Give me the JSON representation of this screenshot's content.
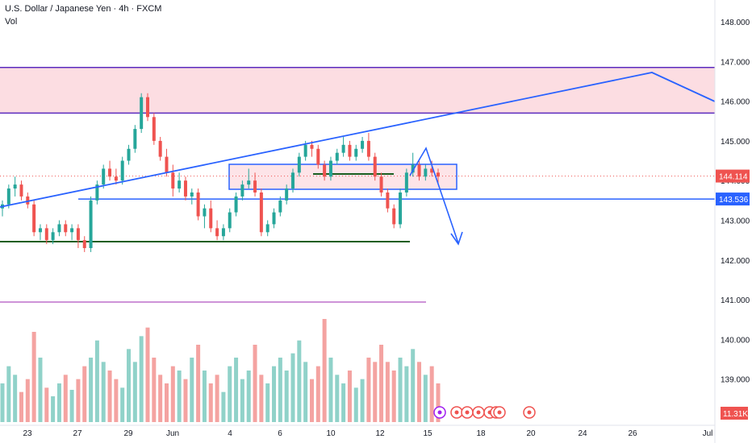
{
  "header": {
    "symbol_line": "U.S. Dollar / Japanese Yen · 4h · FXCM",
    "vol_label": "Vol"
  },
  "colors": {
    "up": "#26a69a",
    "down": "#ef5350",
    "vol_up": "#90d2c9",
    "vol_down": "#f4a3a1",
    "trend": "#2962ff",
    "zone_fill": "#fcdde2",
    "zone_border": "#5b2bbf",
    "support_green": "#1b5e20",
    "purple_line": "#ce93d8",
    "last_price_bg": "#ef5350",
    "level_bg": "#2962ff",
    "vol_badge_bg": "#ef5350"
  },
  "chart_data": {
    "type": "candlestick",
    "title": "U.S. Dollar / Japanese Yen · 4h · FXCM",
    "ylim": [
      138.0,
      148.3
    ],
    "y_ticks": [
      "148.000",
      "147.000",
      "146.000",
      "145.000",
      "144.000",
      "143.000",
      "142.000",
      "141.000",
      "140.000",
      "139.000"
    ],
    "x_ticks": [
      "23",
      "27",
      "29",
      "Jun",
      "4",
      "6",
      "10",
      "12",
      "15",
      "18",
      "20",
      "24",
      "26",
      "Jul"
    ],
    "price_labels": {
      "last_price": "144.114",
      "level": "143.536",
      "volume": "11.31K"
    },
    "ohlc_approx": [
      [
        143.3,
        143.5,
        143.1,
        143.4
      ],
      [
        143.4,
        143.9,
        143.3,
        143.8
      ],
      [
        143.8,
        144.1,
        143.6,
        143.9
      ],
      [
        143.9,
        144.0,
        143.5,
        143.6
      ],
      [
        143.6,
        143.7,
        143.3,
        143.4
      ],
      [
        143.4,
        143.5,
        142.6,
        142.7
      ],
      [
        142.7,
        142.9,
        142.5,
        142.8
      ],
      [
        142.8,
        142.9,
        142.4,
        142.5
      ],
      [
        142.5,
        142.8,
        142.4,
        142.7
      ],
      [
        142.7,
        143.0,
        142.6,
        142.9
      ],
      [
        142.9,
        143.0,
        142.6,
        142.7
      ],
      [
        142.7,
        142.9,
        142.5,
        142.8
      ],
      [
        142.8,
        142.9,
        142.3,
        142.5
      ],
      [
        142.5,
        142.6,
        142.2,
        142.3
      ],
      [
        142.3,
        143.6,
        142.2,
        143.5
      ],
      [
        143.5,
        144.0,
        143.4,
        143.9
      ],
      [
        143.9,
        144.4,
        143.8,
        144.3
      ],
      [
        144.3,
        144.5,
        144.0,
        144.1
      ],
      [
        144.1,
        144.3,
        143.9,
        144.0
      ],
      [
        144.0,
        144.6,
        143.9,
        144.5
      ],
      [
        144.5,
        144.9,
        144.4,
        144.8
      ],
      [
        144.8,
        145.4,
        144.7,
        145.3
      ],
      [
        145.3,
        146.2,
        145.2,
        146.1
      ],
      [
        146.1,
        146.2,
        145.5,
        145.6
      ],
      [
        145.6,
        145.7,
        144.9,
        145.0
      ],
      [
        145.0,
        145.1,
        144.5,
        144.6
      ],
      [
        144.6,
        144.8,
        144.1,
        144.2
      ],
      [
        144.2,
        144.4,
        143.6,
        143.8
      ],
      [
        143.8,
        144.2,
        143.7,
        144.0
      ],
      [
        144.0,
        144.1,
        143.5,
        143.6
      ],
      [
        143.6,
        143.8,
        143.4,
        143.7
      ],
      [
        143.7,
        143.8,
        143.0,
        143.1
      ],
      [
        143.1,
        143.4,
        142.8,
        143.3
      ],
      [
        143.3,
        143.5,
        142.7,
        142.8
      ],
      [
        142.8,
        143.0,
        142.5,
        142.6
      ],
      [
        142.6,
        142.9,
        142.5,
        142.8
      ],
      [
        142.8,
        143.3,
        142.7,
        143.2
      ],
      [
        143.2,
        143.7,
        143.1,
        143.6
      ],
      [
        143.6,
        144.0,
        143.5,
        143.9
      ],
      [
        143.9,
        144.3,
        143.8,
        144.0
      ],
      [
        144.0,
        144.2,
        143.6,
        143.7
      ],
      [
        143.7,
        143.8,
        142.6,
        142.7
      ],
      [
        142.7,
        143.0,
        142.6,
        142.9
      ],
      [
        142.9,
        143.3,
        142.8,
        143.2
      ],
      [
        143.2,
        143.6,
        143.1,
        143.5
      ],
      [
        143.5,
        143.9,
        143.4,
        143.8
      ],
      [
        143.8,
        144.3,
        143.7,
        144.2
      ],
      [
        144.2,
        144.7,
        144.1,
        144.6
      ],
      [
        144.6,
        145.0,
        144.5,
        144.9
      ],
      [
        144.9,
        145.0,
        144.6,
        144.8
      ],
      [
        144.8,
        144.9,
        144.3,
        144.4
      ],
      [
        144.4,
        144.5,
        144.0,
        144.1
      ],
      [
        144.1,
        144.6,
        144.0,
        144.5
      ],
      [
        144.5,
        144.8,
        144.4,
        144.7
      ],
      [
        144.7,
        145.1,
        144.6,
        144.9
      ],
      [
        144.9,
        145.0,
        144.5,
        144.6
      ],
      [
        144.6,
        144.9,
        144.5,
        144.8
      ],
      [
        144.8,
        145.1,
        144.7,
        145.0
      ],
      [
        145.0,
        145.2,
        144.5,
        144.6
      ],
      [
        144.6,
        144.7,
        144.0,
        144.1
      ],
      [
        144.1,
        144.2,
        143.6,
        143.7
      ],
      [
        143.7,
        143.8,
        143.2,
        143.3
      ],
      [
        143.3,
        143.4,
        142.8,
        142.9
      ],
      [
        142.9,
        143.8,
        142.8,
        143.7
      ],
      [
        143.7,
        144.3,
        143.6,
        144.2
      ],
      [
        144.2,
        144.7,
        144.1,
        144.4
      ],
      [
        144.4,
        144.5,
        144.0,
        144.1
      ],
      [
        144.1,
        144.4,
        144.0,
        144.3
      ],
      [
        144.3,
        144.5,
        144.1,
        144.2
      ],
      [
        144.2,
        144.3,
        143.9,
        144.1
      ]
    ],
    "volume_approx": [
      18,
      26,
      22,
      14,
      20,
      42,
      30,
      16,
      12,
      18,
      22,
      15,
      20,
      26,
      30,
      38,
      28,
      24,
      20,
      16,
      34,
      28,
      40,
      44,
      30,
      22,
      18,
      26,
      24,
      20,
      30,
      36,
      24,
      18,
      22,
      14,
      26,
      30,
      20,
      24,
      36,
      22,
      18,
      26,
      30,
      24,
      32,
      38,
      28,
      20,
      26,
      48,
      30,
      22,
      18,
      24,
      16,
      20,
      30,
      28,
      36,
      28,
      24,
      30,
      26,
      34,
      28,
      22,
      26,
      18
    ]
  }
}
